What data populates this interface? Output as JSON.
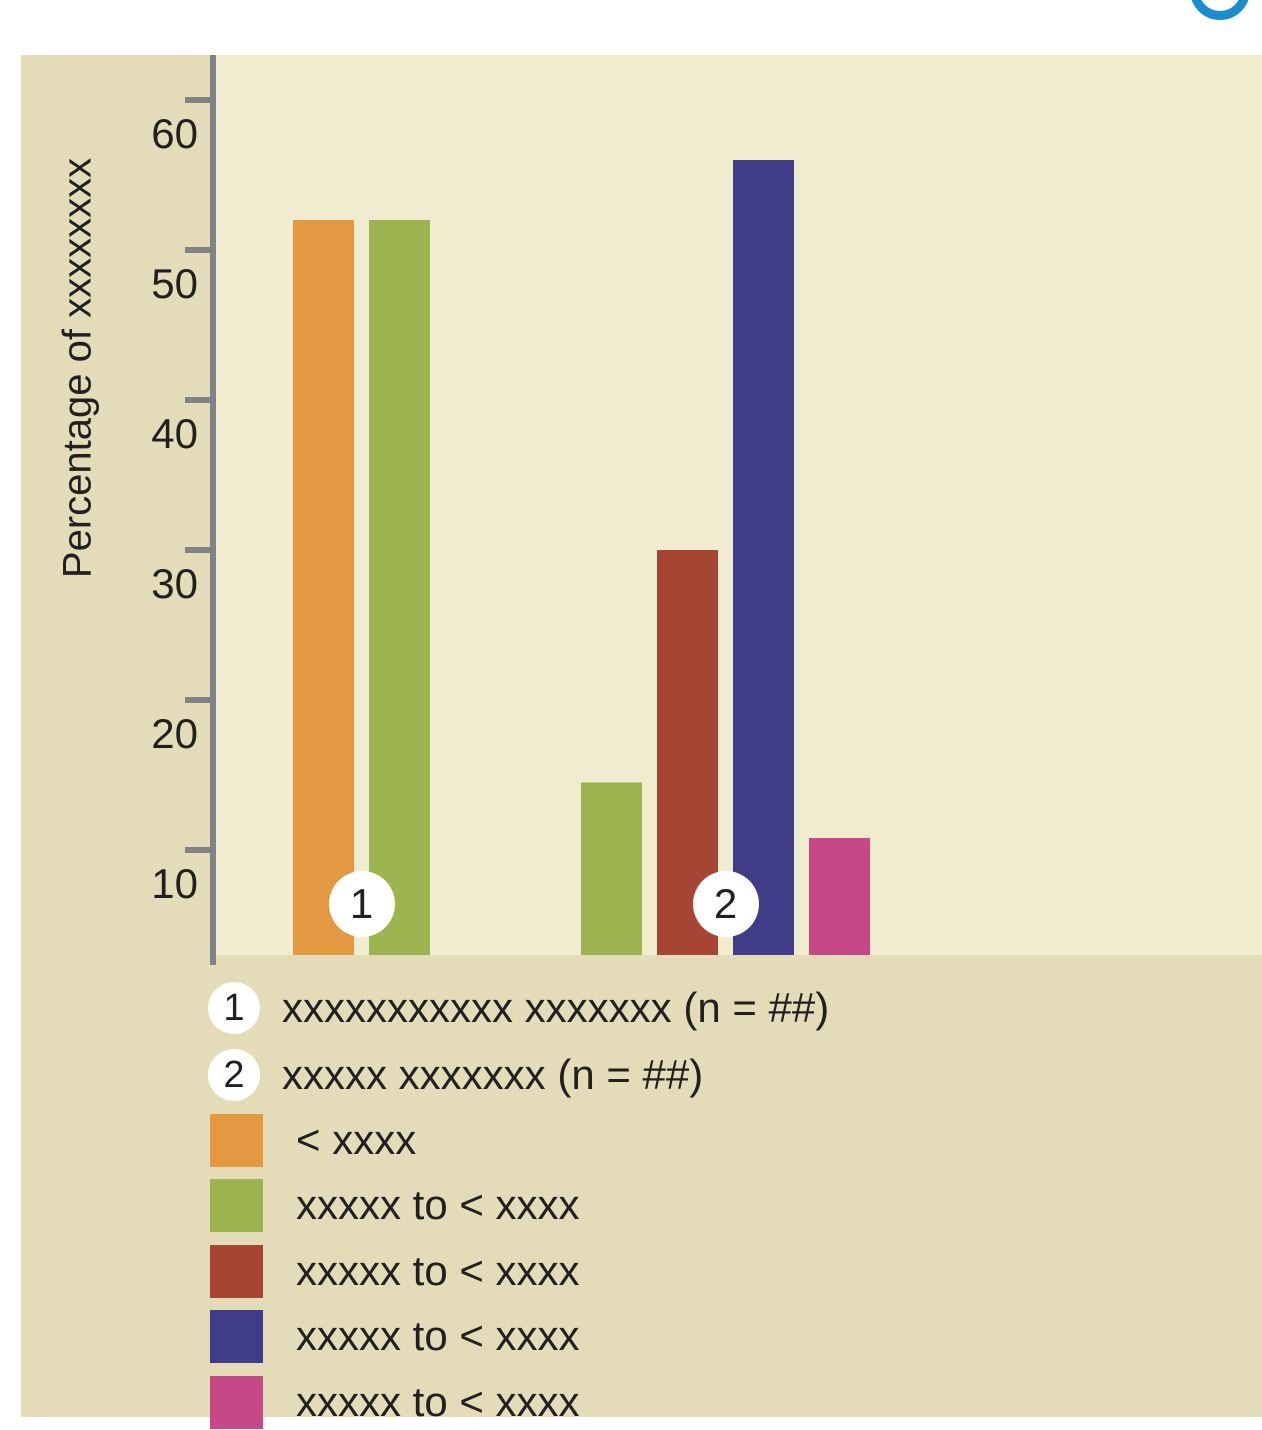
{
  "chart_data": {
    "type": "bar",
    "ylabel": "Percentage of xxxxxxxx",
    "y_ticks": [
      "60",
      "50",
      "40",
      "30",
      "20",
      "10"
    ],
    "ylim": [
      3,
      63
    ],
    "groups": [
      {
        "marker": "1",
        "label": "xxxxxxxxxxx xxxxxxx (n = ##)",
        "bars": [
          {
            "category": "< xxxx",
            "value": 52
          },
          {
            "category": "xxxxx to < xxxx (1)",
            "value": 52
          }
        ]
      },
      {
        "marker": "2",
        "label": "xxxxx xxxxxxx (n = ##)",
        "bars": [
          {
            "category": "xxxxx to < xxxx (1)",
            "value": 14.5
          },
          {
            "category": "xxxxx to < xxxx (2)",
            "value": 30
          },
          {
            "category": "xxxxx to < xxxx (3)",
            "value": 56
          },
          {
            "category": "xxxxx to < xxxx (4)",
            "value": 10.8
          }
        ]
      }
    ],
    "legend": [
      {
        "label": "< xxxx",
        "color": "#e39842"
      },
      {
        "label": "xxxxx to < xxxx",
        "color": "#9db350"
      },
      {
        "label": "xxxxx to < xxxx",
        "color": "#a64534"
      },
      {
        "label": "xxxxx to < xxxx",
        "color": "#413c87"
      },
      {
        "label": "xxxxx to < xxxx",
        "color": "#c64886"
      }
    ],
    "colors": {
      "panel": "#e4dcb8",
      "plot_background": "#f1ebcf",
      "axis": "#808285"
    }
  }
}
